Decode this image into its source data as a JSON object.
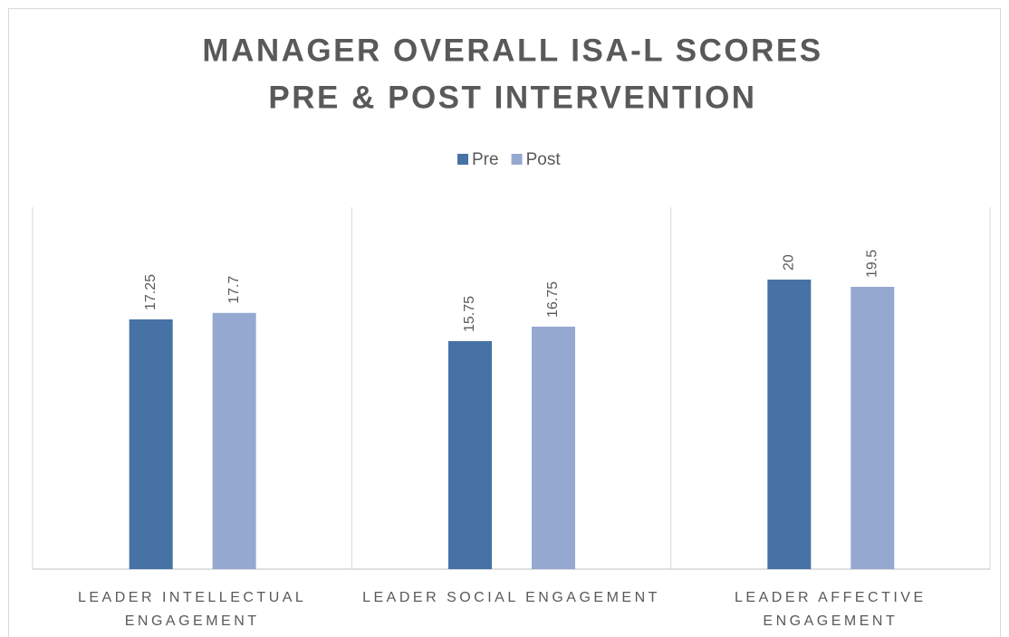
{
  "chart_data": {
    "type": "bar",
    "title": [
      "MANAGER OVERALL ISA-L SCORES",
      "PRE & POST INTERVENTION"
    ],
    "categories": [
      "LEADER INTELLECTUAL ENGAGEMENT",
      "LEADER SOCIAL ENGAGEMENT",
      "LEADER AFFECTIVE ENGAGEMENT"
    ],
    "series": [
      {
        "name": "Pre",
        "color": "#4672a6",
        "values": [
          17.25,
          15.75,
          20
        ]
      },
      {
        "name": "Post",
        "color": "#95a9d0",
        "values": [
          17.7,
          16.75,
          19.5
        ]
      }
    ],
    "ylim": [
      0,
      25
    ],
    "legend": "top"
  }
}
